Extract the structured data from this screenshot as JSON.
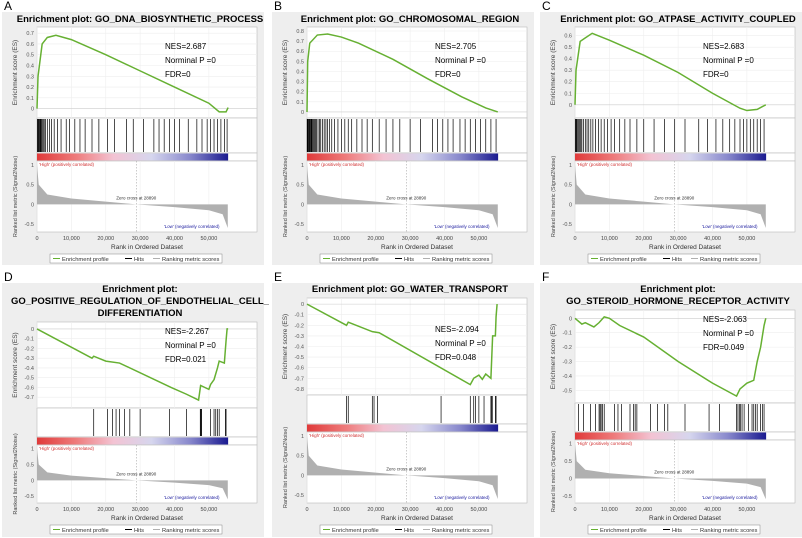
{
  "chart_data": [
    {
      "panel": "A",
      "type": "line",
      "title_lines": [
        "Enrichment plot: GO_DNA_BIOSYNTHETIC_PROCESS"
      ],
      "stats": [
        "NES=2.687",
        "Norminal P =0",
        "FDR=0"
      ],
      "es_ticks": [
        0.7,
        0.6,
        0.5,
        0.4,
        0.3,
        0.2,
        0.1,
        0.0
      ],
      "ylim": [
        -0.05,
        0.72
      ],
      "es_curve": [
        [
          0,
          0
        ],
        [
          300,
          0.3
        ],
        [
          1500,
          0.6
        ],
        [
          3000,
          0.66
        ],
        [
          5500,
          0.68
        ],
        [
          10000,
          0.64
        ],
        [
          20000,
          0.5
        ],
        [
          30000,
          0.35
        ],
        [
          40000,
          0.2
        ],
        [
          50000,
          0.05
        ],
        [
          53000,
          -0.03
        ],
        [
          55000,
          -0.03
        ],
        [
          55600,
          0.01
        ]
      ],
      "hits": [
        100,
        300,
        500,
        700,
        900,
        1100,
        1300,
        1500,
        1800,
        2100,
        2500,
        3000,
        3600,
        4200,
        5000,
        6000,
        7000,
        8500,
        9500,
        11000,
        12500,
        14000,
        16000,
        18000,
        20500,
        22500,
        26000,
        28000,
        31000,
        34000,
        35500,
        37000,
        38500,
        40000,
        41500,
        44000,
        46500,
        48000,
        49500,
        50500,
        51500,
        52500,
        53500,
        54500,
        55300
      ]
    },
    {
      "panel": "B",
      "type": "line",
      "title_lines": [
        "Enrichment plot: GO_CHROMOSOMAL_REGION"
      ],
      "stats": [
        "NES=2.705",
        "Norminal P =0",
        "FDR=0"
      ],
      "es_ticks": [
        0.8,
        0.7,
        0.6,
        0.5,
        0.4,
        0.3,
        0.2,
        0.1,
        0.0
      ],
      "ylim": [
        -0.02,
        0.8
      ],
      "es_curve": [
        [
          0,
          0
        ],
        [
          200,
          0.5
        ],
        [
          800,
          0.68
        ],
        [
          3000,
          0.76
        ],
        [
          6000,
          0.77
        ],
        [
          10000,
          0.74
        ],
        [
          15000,
          0.68
        ],
        [
          25000,
          0.52
        ],
        [
          35000,
          0.33
        ],
        [
          45000,
          0.15
        ],
        [
          52000,
          0.04
        ],
        [
          55500,
          0
        ]
      ],
      "hits": [
        50,
        200,
        400,
        600,
        800,
        1000,
        1200,
        1400,
        1600,
        1900,
        2200,
        2500,
        2800,
        3200,
        3600,
        4000,
        4500,
        5000,
        5500,
        6000,
        6500,
        7200,
        8000,
        9000,
        10000,
        11000,
        12000,
        13000,
        14500,
        16000,
        17500,
        19000,
        21000,
        23000,
        25000,
        27000,
        30000,
        33000,
        36500,
        38000,
        39500,
        41000,
        42500,
        44500,
        46000,
        47500,
        49000,
        50500,
        52000,
        53500,
        55000
      ]
    },
    {
      "panel": "C",
      "type": "line",
      "title_lines": [
        "Enrichment plot: GO_ATPASE_ACTIVITY_COUPLED"
      ],
      "stats": [
        "NES=2.683",
        "Norminal P =0",
        "FDR=0"
      ],
      "es_ticks": [
        0.6,
        0.5,
        0.4,
        0.3,
        0.2,
        0.1,
        0.0
      ],
      "ylim": [
        -0.08,
        0.64
      ],
      "es_curve": [
        [
          0,
          0
        ],
        [
          300,
          0.3
        ],
        [
          1500,
          0.55
        ],
        [
          3000,
          0.58
        ],
        [
          5000,
          0.62
        ],
        [
          10000,
          0.56
        ],
        [
          20000,
          0.43
        ],
        [
          30000,
          0.28
        ],
        [
          40000,
          0.1
        ],
        [
          48000,
          -0.03
        ],
        [
          50000,
          -0.05
        ],
        [
          53000,
          -0.04
        ],
        [
          55500,
          0.0
        ]
      ],
      "hits": [
        100,
        300,
        500,
        800,
        1100,
        1400,
        1700,
        2000,
        2500,
        3000,
        3500,
        4000,
        4600,
        5200,
        6000,
        6800,
        7600,
        8500,
        9500,
        10500,
        11500,
        13000,
        14500,
        16000,
        18000,
        20000,
        23000,
        26000,
        29000,
        32000,
        36000,
        38500,
        41000,
        43000,
        45000,
        46500,
        48000,
        49000,
        50000,
        51000,
        52000,
        53000,
        54000,
        55000
      ]
    },
    {
      "panel": "D",
      "type": "line",
      "title_lines": [
        "Enrichment plot:",
        "GO_POSITIVE_REGULATION_OF_ENDOTHELIAL_CELL_",
        "DIFFERENTIATION"
      ],
      "stats": [
        "NES=-2.267",
        "Norminal P =0",
        "FDR=0.021"
      ],
      "es_ticks": [
        0.0,
        -0.1,
        -0.2,
        -0.3,
        -0.4,
        -0.5,
        -0.6,
        -0.7
      ],
      "ylim": [
        -0.77,
        0.03
      ],
      "es_curve": [
        [
          0,
          0
        ],
        [
          16000,
          -0.3
        ],
        [
          16500,
          -0.28
        ],
        [
          20000,
          -0.33
        ],
        [
          24000,
          -0.35
        ],
        [
          39000,
          -0.6
        ],
        [
          43500,
          -0.67
        ],
        [
          47000,
          -0.73
        ],
        [
          47600,
          -0.58
        ],
        [
          50000,
          -0.62
        ],
        [
          50500,
          -0.57
        ],
        [
          51500,
          -0.52
        ],
        [
          52500,
          -0.4
        ],
        [
          53000,
          -0.33
        ],
        [
          54500,
          -0.35
        ],
        [
          55000,
          -0.12
        ],
        [
          55300,
          0.0
        ],
        [
          55600,
          0.0
        ]
      ],
      "hits": [
        16500,
        20500,
        22000,
        23000,
        24000,
        25500,
        27000,
        30000,
        38500,
        43500,
        47500,
        47700,
        47900,
        50500,
        51500,
        52000,
        52500,
        53000,
        54800,
        55000
      ]
    },
    {
      "panel": "E",
      "type": "line",
      "title_lines": [
        "Enrichment plot: GO_WATER_TRANSPORT"
      ],
      "stats": [
        "NES=-2.094",
        "Norminal P =0",
        "FDR=0.048"
      ],
      "es_ticks": [
        0.0,
        -0.1,
        -0.2,
        -0.3,
        -0.4,
        -0.5,
        -0.6,
        -0.7,
        -0.8
      ],
      "ylim": [
        -0.82,
        0.02
      ],
      "es_curve": [
        [
          0,
          0
        ],
        [
          11500,
          -0.2
        ],
        [
          12000,
          -0.17
        ],
        [
          19000,
          -0.26
        ],
        [
          21000,
          -0.27
        ],
        [
          47500,
          -0.76
        ],
        [
          48500,
          -0.7
        ],
        [
          50000,
          -0.67
        ],
        [
          51000,
          -0.71
        ],
        [
          52000,
          -0.66
        ],
        [
          53500,
          -0.7
        ],
        [
          54000,
          -0.3
        ],
        [
          54800,
          -0.3
        ],
        [
          55000,
          -0.12
        ],
        [
          55300,
          0
        ]
      ],
      "hits": [
        11500,
        12000,
        19000,
        19500,
        20500,
        39000,
        47500,
        48500,
        49000,
        50000,
        51500,
        53500,
        53700,
        53900,
        54800,
        55000
      ]
    },
    {
      "panel": "F",
      "type": "line",
      "title_lines": [
        "Enrichment plot:",
        "GO_STEROID_HORMONE_RECEPTOR_ACTIVITY"
      ],
      "stats": [
        "NES=-2.063",
        "Norminal P =0",
        "FDR=0.049"
      ],
      "es_ticks": [
        0.0,
        -0.1,
        -0.2,
        -0.3,
        -0.4,
        -0.5
      ],
      "ylim": [
        -0.56,
        0.03
      ],
      "es_curve": [
        [
          0,
          0
        ],
        [
          2000,
          -0.04
        ],
        [
          3000,
          -0.03
        ],
        [
          5500,
          -0.06
        ],
        [
          7000,
          -0.03
        ],
        [
          8500,
          0.01
        ],
        [
          10000,
          0.0
        ],
        [
          13000,
          -0.05
        ],
        [
          20000,
          -0.13
        ],
        [
          30000,
          -0.3
        ],
        [
          40000,
          -0.45
        ],
        [
          47000,
          -0.54
        ],
        [
          48000,
          -0.49
        ],
        [
          50000,
          -0.45
        ],
        [
          52000,
          -0.43
        ],
        [
          53000,
          -0.3
        ],
        [
          54000,
          -0.2
        ],
        [
          55000,
          -0.05
        ],
        [
          55500,
          0.0
        ]
      ],
      "hits": [
        1000,
        2500,
        4500,
        6000,
        7000,
        7300,
        7600,
        8000,
        8500,
        11500,
        12500,
        13500,
        16000,
        17000,
        17500,
        18000,
        22000,
        24000,
        26000,
        27000,
        32000,
        39000,
        42000,
        47000,
        47400,
        47800,
        48200,
        48600,
        49200,
        50500,
        51500,
        52000,
        52500,
        53000,
        54000,
        54500,
        55000
      ]
    }
  ],
  "shared": {
    "xlim": [
      0,
      64000
    ],
    "x_ticks": [
      0,
      10000,
      20000,
      30000,
      40000,
      50000
    ],
    "x_tick_labels": [
      "0",
      "10,000",
      "20,000",
      "30,000",
      "40,000",
      "50,000"
    ],
    "xlabel": "Rank in Ordered Dataset",
    "es_ylabel": "Enrichment score (ES)",
    "metric_ylabel": "Ranked list metric (Signal2Noise)",
    "metric_ticks": [
      1.0,
      0.5,
      0.0,
      -0.5
    ],
    "metric_ylim": [
      -0.65,
      1.05
    ],
    "metric_curve": [
      [
        0,
        1.0
      ],
      [
        500,
        0.5
      ],
      [
        3000,
        0.25
      ],
      [
        10000,
        0.15
      ],
      [
        20000,
        0.07
      ],
      [
        28890,
        0
      ],
      [
        40000,
        -0.07
      ],
      [
        50000,
        -0.15
      ],
      [
        54000,
        -0.25
      ],
      [
        55500,
        -0.6
      ]
    ],
    "high_label": "'High' (positively correlated)",
    "low_label": "'Low' (negatively correlated)",
    "zero_cross_label": "Zero cross at 28890",
    "legend": [
      "Enrichment profile",
      "Hits",
      "Ranking metric scores"
    ],
    "colors": {
      "es_line": "#66b032",
      "hits": "#000000",
      "metric": "#b0b0b0",
      "high": "#d03030",
      "low": "#2020a0",
      "panel_bg": "#eeeeee"
    }
  }
}
